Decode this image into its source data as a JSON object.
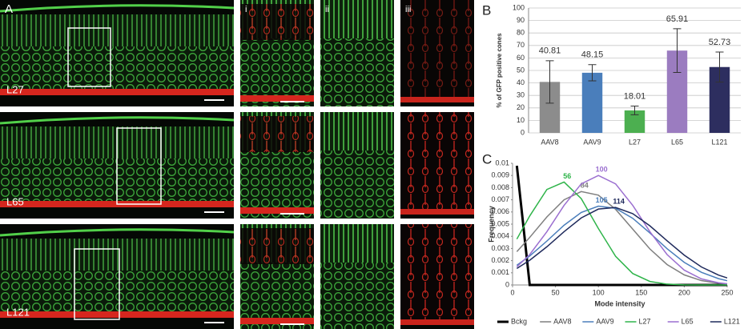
{
  "figure": {
    "panel_a": {
      "label": "A",
      "rows": [
        "L27",
        "L65",
        "L121"
      ],
      "columns": [
        "i",
        "ii",
        "iii"
      ]
    },
    "panel_b_label": "B",
    "panel_c_label": "C"
  },
  "chart_data": [
    {
      "type": "bar",
      "ylabel": "% of GFP positive cones",
      "categories": [
        "AAV8",
        "AAV9",
        "L27",
        "L65",
        "L121"
      ],
      "values": [
        40.81,
        48.15,
        18.01,
        65.91,
        52.73
      ],
      "errors": [
        17,
        6.5,
        3.5,
        17.5,
        12
      ],
      "colors": [
        "#8c8c8c",
        "#4a7ebb",
        "#4caf50",
        "#9b7cc0",
        "#2d2e5f"
      ],
      "ylim": [
        0,
        100
      ],
      "yticks": [
        0,
        10,
        20,
        30,
        40,
        50,
        60,
        70,
        80,
        90,
        100
      ],
      "grid": true
    },
    {
      "type": "line",
      "xlabel": "Mode intensity",
      "ylabel": "Frequency",
      "x": [
        5,
        20,
        40,
        60,
        80,
        100,
        120,
        140,
        160,
        180,
        200,
        220,
        240,
        250
      ],
      "series": [
        {
          "name": "Bckg",
          "color": "#000000",
          "width": 3,
          "values": [
            0.0098,
            0,
            0,
            0,
            0,
            0,
            0,
            0,
            0,
            0,
            0,
            0,
            0,
            0
          ]
        },
        {
          "name": "AAV8",
          "color": "#7f7f7f",
          "mode_label": "84",
          "values": [
            0.00274,
            0.00391,
            0.00559,
            0.007,
            0.00768,
            0.00738,
            0.00622,
            0.00459,
            0.00296,
            0.00168,
            0.00083,
            0.00036,
            0.00014,
            8e-05
          ]
        },
        {
          "name": "AAV9",
          "color": "#4a7ebb",
          "mode_label": "105",
          "values": [
            0.00162,
            0.00238,
            0.00361,
            0.00491,
            0.00596,
            0.00648,
            0.0063,
            0.00548,
            0.00427,
            0.00298,
            0.00186,
            0.00104,
            0.00052,
            0.00035
          ]
        },
        {
          "name": "L27",
          "color": "#2fb44a",
          "mode_label": "56",
          "values": [
            0.00377,
            0.00567,
            0.00785,
            0.00846,
            0.0071,
            0.00464,
            0.00236,
            0.00094,
            0.00029,
            7e-05,
            1e-05,
            0,
            0,
            0
          ]
        },
        {
          "name": "L65",
          "color": "#9b6fd0",
          "mode_label": "100",
          "values": [
            0.00149,
            0.0025,
            0.00438,
            0.00654,
            0.00831,
            0.009,
            0.00831,
            0.00654,
            0.00438,
            0.0025,
            0.00122,
            0.0005,
            0.00018,
            0.0001
          ]
        },
        {
          "name": "L121",
          "color": "#1f2a5c",
          "mode_label": "114",
          "values": [
            0.00136,
            0.00203,
            0.00314,
            0.00438,
            0.00551,
            0.00624,
            0.00637,
            0.00586,
            0.00486,
            0.00363,
            0.00245,
            0.00148,
            0.00081,
            0.00058
          ]
        }
      ],
      "xlim": [
        0,
        250
      ],
      "xticks": [
        0,
        50,
        100,
        150,
        200,
        250
      ],
      "ylim": [
        0,
        0.01
      ],
      "yticks": [
        0,
        0.001,
        0.002,
        0.003,
        0.004,
        0.005,
        0.006,
        0.007,
        0.008,
        0.009,
        0.01
      ]
    }
  ]
}
